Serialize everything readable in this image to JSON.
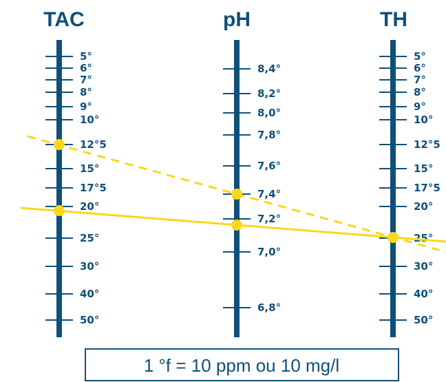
{
  "colors": {
    "scale": "#0f4f7a",
    "line": "#f7d81a",
    "dot": "#f7d81a",
    "background": "#ffffff"
  },
  "scales": {
    "tac": {
      "title": "TAC",
      "ticks": [
        "5°",
        "6°",
        "7°",
        "8°",
        "9°",
        "10°",
        "12°5",
        "15°",
        "17°5",
        "20°",
        "25°",
        "30°",
        "40°",
        "50°"
      ]
    },
    "ph": {
      "title": "pH",
      "ticks": [
        "8,4°",
        "8,2°",
        "8,0°",
        "7,8°",
        "7,6°",
        "7,4°",
        "7,2°",
        "7,0°",
        "6,8°"
      ]
    },
    "th": {
      "title": "TH",
      "ticks": [
        "5°",
        "6°",
        "7°",
        "8°",
        "9°",
        "10°",
        "12°5",
        "15°",
        "17°5",
        "20°",
        "25°",
        "30°",
        "40°",
        "50°"
      ]
    }
  },
  "readings": [
    {
      "style": "solid",
      "tac": "20°",
      "ph": "7,2°",
      "th": "25°"
    },
    {
      "style": "dashed",
      "tac": "12°5",
      "ph": "7,4°",
      "th": "25°"
    }
  ],
  "footer": {
    "text": "1 °f = 10 ppm ou 10 mg/l"
  }
}
